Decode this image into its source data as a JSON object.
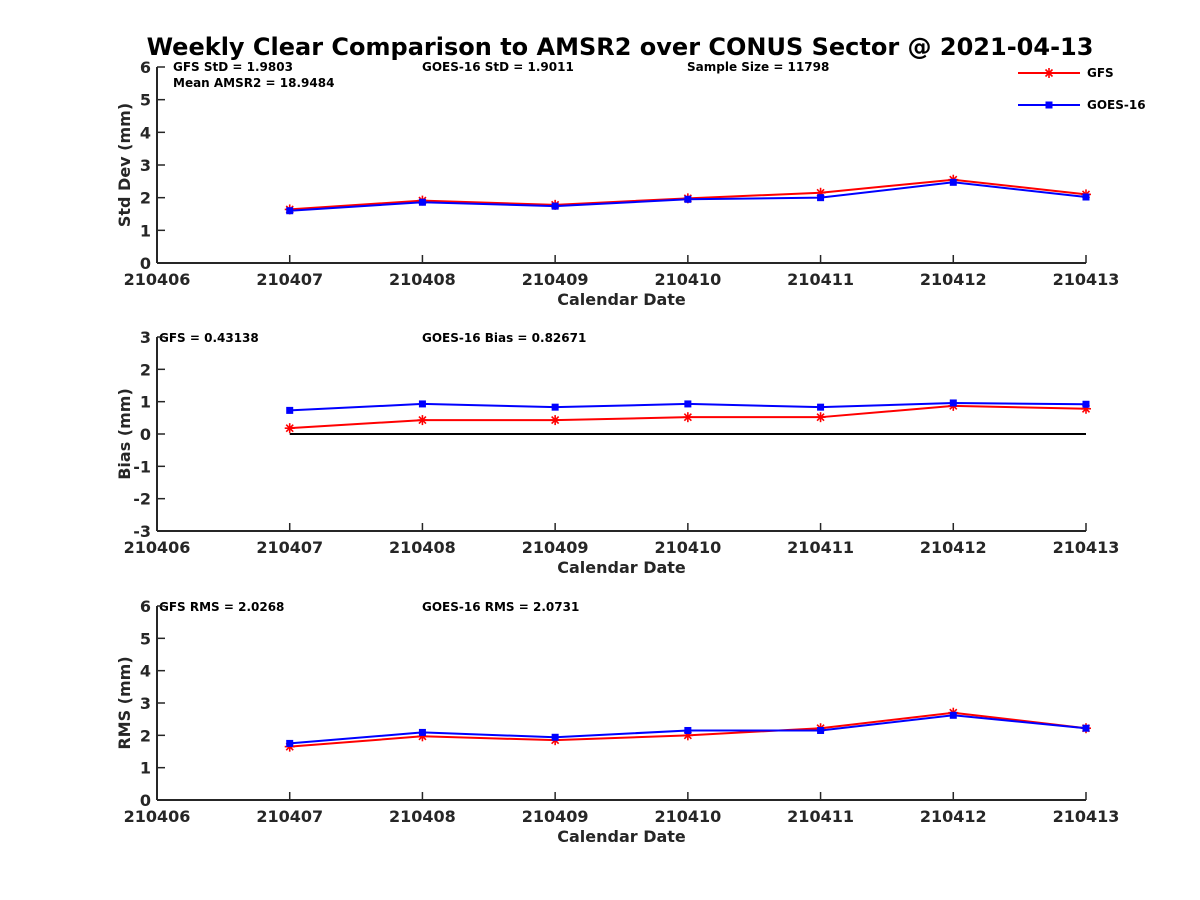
{
  "figure": {
    "title": "Weekly Clear Comparison to AMSR2 over CONUS Sector @ 2021-04-13"
  },
  "legend": {
    "placement": "top-right",
    "entries": [
      {
        "label": "GFS",
        "color": "#ff0000",
        "marker": "asterisk"
      },
      {
        "label": "GOES-16",
        "color": "#0000ff",
        "marker": "square"
      }
    ]
  },
  "chart_data": [
    {
      "type": "line",
      "panel": "stddev",
      "xlabel": "Calendar Date",
      "ylabel": "Std Dev (mm)",
      "categories": [
        "210406",
        "210407",
        "210408",
        "210409",
        "210410",
        "210411",
        "210412",
        "210413"
      ],
      "ylim": [
        0,
        6
      ],
      "yticks": [
        "0",
        "1",
        "2",
        "3",
        "4",
        "5",
        "6"
      ],
      "grid": false,
      "annotations": [
        "GFS StD = 1.9803",
        "Mean AMSR2 = 18.9484",
        "GOES-16 StD = 1.9011",
        "Sample Size = 11798"
      ],
      "series": [
        {
          "name": "GFS",
          "color": "#ff0000",
          "marker": "asterisk",
          "x": [
            "210407",
            "210408",
            "210409",
            "210410",
            "210411",
            "210412",
            "210413"
          ],
          "values": [
            1.64,
            1.91,
            1.78,
            1.98,
            2.15,
            2.55,
            2.1
          ]
        },
        {
          "name": "GOES-16",
          "color": "#0000ff",
          "marker": "square",
          "x": [
            "210407",
            "210408",
            "210409",
            "210410",
            "210411",
            "210412",
            "210413"
          ],
          "values": [
            1.6,
            1.86,
            1.74,
            1.95,
            2.0,
            2.47,
            2.02
          ]
        }
      ]
    },
    {
      "type": "line",
      "panel": "bias",
      "xlabel": "Calendar Date",
      "ylabel": "Bias (mm)",
      "categories": [
        "210406",
        "210407",
        "210408",
        "210409",
        "210410",
        "210411",
        "210412",
        "210413"
      ],
      "ylim": [
        -3,
        3
      ],
      "yticks": [
        "-3",
        "-2",
        "-1",
        "0",
        "1",
        "2",
        "3"
      ],
      "grid": false,
      "reference_line": {
        "y": 0,
        "x_from": "210407",
        "x_to": "210413",
        "color": "#000000"
      },
      "annotations": [
        "GFS = 0.43138",
        "GOES-16 Bias  = 0.82671"
      ],
      "series": [
        {
          "name": "GFS",
          "color": "#ff0000",
          "marker": "asterisk",
          "x": [
            "210407",
            "210408",
            "210409",
            "210410",
            "210411",
            "210412",
            "210413"
          ],
          "values": [
            0.18,
            0.43,
            0.43,
            0.52,
            0.52,
            0.87,
            0.78
          ]
        },
        {
          "name": "GOES-16",
          "color": "#0000ff",
          "marker": "square",
          "x": [
            "210407",
            "210408",
            "210409",
            "210410",
            "210411",
            "210412",
            "210413"
          ],
          "values": [
            0.73,
            0.93,
            0.83,
            0.93,
            0.83,
            0.96,
            0.92
          ]
        }
      ]
    },
    {
      "type": "line",
      "panel": "rms",
      "xlabel": "Calendar Date",
      "ylabel": "RMS (mm)",
      "categories": [
        "210406",
        "210407",
        "210408",
        "210409",
        "210410",
        "210411",
        "210412",
        "210413"
      ],
      "ylim": [
        0,
        6
      ],
      "yticks": [
        "0",
        "1",
        "2",
        "3",
        "4",
        "5",
        "6"
      ],
      "grid": false,
      "annotations": [
        "GFS RMS = 2.0268",
        "GOES-16 RMS = 2.0731"
      ],
      "series": [
        {
          "name": "GFS",
          "color": "#ff0000",
          "marker": "asterisk",
          "x": [
            "210407",
            "210408",
            "210409",
            "210410",
            "210411",
            "210412",
            "210413"
          ],
          "values": [
            1.65,
            1.97,
            1.85,
            2.0,
            2.22,
            2.7,
            2.22
          ]
        },
        {
          "name": "GOES-16",
          "color": "#0000ff",
          "marker": "square",
          "x": [
            "210407",
            "210408",
            "210409",
            "210410",
            "210411",
            "210412",
            "210413"
          ],
          "values": [
            1.75,
            2.09,
            1.94,
            2.15,
            2.15,
            2.62,
            2.22
          ]
        }
      ]
    }
  ]
}
